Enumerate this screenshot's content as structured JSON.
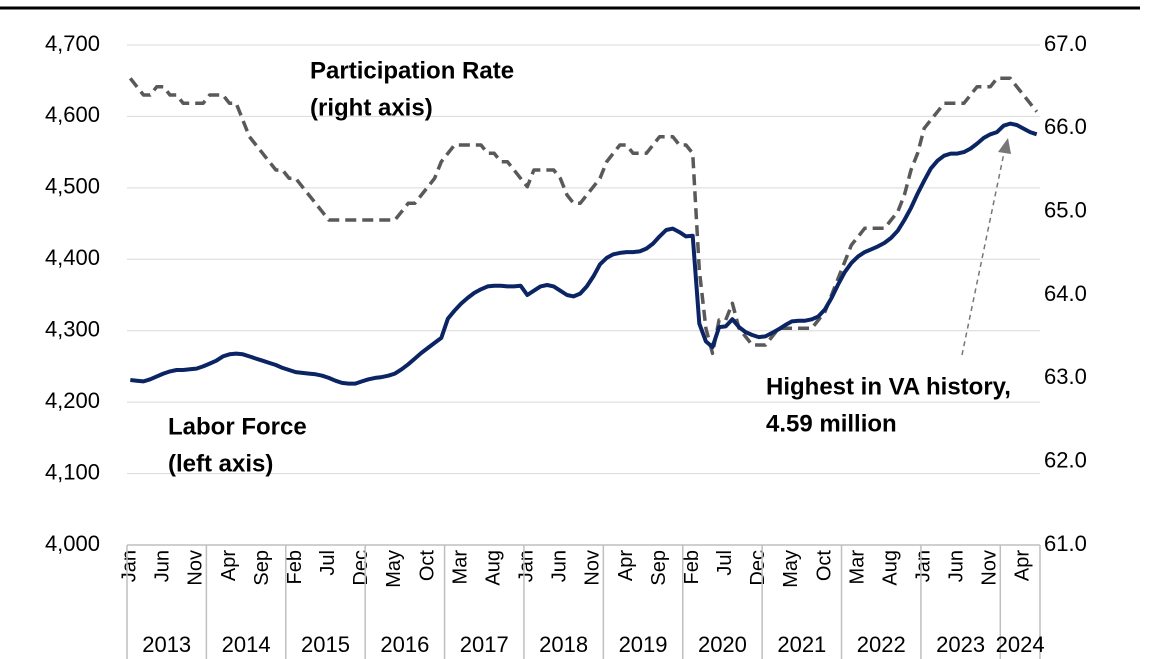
{
  "chart_data": {
    "type": "line",
    "categories": [
      "Jan",
      null,
      null,
      null,
      null,
      "Jun",
      null,
      null,
      null,
      null,
      "Nov",
      null,
      null,
      null,
      null,
      "Apr",
      null,
      null,
      null,
      null,
      "Sep",
      null,
      null,
      null,
      null,
      "Feb",
      null,
      null,
      null,
      null,
      "Jul",
      null,
      null,
      null,
      null,
      "Dec",
      null,
      null,
      null,
      null,
      "May",
      null,
      null,
      null,
      null,
      "Oct",
      null,
      null,
      null,
      null,
      "Mar",
      null,
      null,
      null,
      null,
      "Aug",
      null,
      null,
      null,
      null,
      "Jan",
      null,
      null,
      null,
      null,
      "Jun",
      null,
      null,
      null,
      null,
      "Nov",
      null,
      null,
      null,
      null,
      "Apr",
      null,
      null,
      null,
      null,
      "Sep",
      null,
      null,
      null,
      null,
      "Feb",
      null,
      null,
      null,
      null,
      "Jul",
      null,
      null,
      null,
      null,
      "Dec",
      null,
      null,
      null,
      null,
      "May",
      null,
      null,
      null,
      null,
      "Oct",
      null,
      null,
      null,
      null,
      "Mar",
      null,
      null,
      null,
      null,
      "Aug",
      null,
      null,
      null,
      null,
      "Jan",
      null,
      null,
      null,
      null,
      "Jun",
      null,
      null,
      null,
      null,
      "Nov",
      null,
      null,
      null,
      null,
      "Apr",
      null,
      null
    ],
    "years": [
      {
        "label": "2013",
        "months": 12
      },
      {
        "label": "2014",
        "months": 12
      },
      {
        "label": "2015",
        "months": 12
      },
      {
        "label": "2016",
        "months": 12
      },
      {
        "label": "2017",
        "months": 12
      },
      {
        "label": "2018",
        "months": 12
      },
      {
        "label": "2019",
        "months": 12
      },
      {
        "label": "2020",
        "months": 12
      },
      {
        "label": "2021",
        "months": 12
      },
      {
        "label": "2022",
        "months": 12
      },
      {
        "label": "2023",
        "months": 12
      },
      {
        "label": "2024",
        "months": 6
      }
    ],
    "series": [
      {
        "name": "Labor Force",
        "axis_label": "(left axis)",
        "color": "#0b2463",
        "dashed": false,
        "values": [
          4231,
          4230,
          4229,
          4232,
          4236,
          4240,
          4243,
          4245,
          4245,
          4246,
          4247,
          4250,
          4254,
          4258,
          4264,
          4267,
          4268,
          4267,
          4264,
          4261,
          4258,
          4255,
          4252,
          4248,
          4245,
          4242,
          4241,
          4240,
          4239,
          4237,
          4234,
          4230,
          4227,
          4226,
          4226,
          4229,
          4232,
          4234,
          4235,
          4237,
          4240,
          4246,
          4253,
          4261,
          4269,
          4276,
          4283,
          4290,
          4317,
          4328,
          4338,
          4346,
          4353,
          4358,
          4362,
          4363,
          4363,
          4362,
          4362,
          4363,
          4350,
          4356,
          4362,
          4364,
          4362,
          4356,
          4350,
          4348,
          4352,
          4362,
          4376,
          4393,
          4402,
          4407,
          4409,
          4410,
          4410,
          4411,
          4415,
          4422,
          4432,
          4441,
          4443,
          4438,
          4432,
          4433,
          4310,
          4285,
          4277,
          4305,
          4306,
          4316,
          4305,
          4298,
          4294,
          4291,
          4292,
          4297,
          4302,
          4308,
          4313,
          4314,
          4314,
          4316,
          4320,
          4330,
          4346,
          4365,
          4382,
          4395,
          4404,
          4410,
          4414,
          4418,
          4423,
          4430,
          4440,
          4455,
          4472,
          4492,
          4510,
          4527,
          4538,
          4545,
          4548,
          4548,
          4550,
          4555,
          4562,
          4570,
          4575,
          4578,
          4587,
          4590,
          4588,
          4583,
          4578,
          4575
        ]
      },
      {
        "name": "Participation Rate",
        "axis_label": "(right axis)",
        "color": "#595959",
        "dashed": true,
        "axis": "y2",
        "values": [
          66.6,
          66.5,
          66.4,
          66.4,
          66.5,
          66.5,
          66.4,
          66.4,
          66.3,
          66.3,
          66.3,
          66.3,
          66.4,
          66.4,
          66.4,
          66.3,
          66.3,
          66.1,
          65.9,
          65.8,
          65.7,
          65.6,
          65.5,
          65.5,
          65.4,
          65.4,
          65.3,
          65.2,
          65.1,
          65.0,
          64.9,
          64.9,
          64.9,
          64.9,
          64.9,
          64.9,
          64.9,
          64.9,
          64.9,
          64.9,
          64.9,
          65.0,
          65.1,
          65.1,
          65.2,
          65.3,
          65.4,
          65.6,
          65.7,
          65.8,
          65.8,
          65.8,
          65.8,
          65.8,
          65.7,
          65.7,
          65.6,
          65.6,
          65.5,
          65.4,
          65.3,
          65.5,
          65.5,
          65.5,
          65.5,
          65.4,
          65.2,
          65.1,
          65.1,
          65.2,
          65.3,
          65.4,
          65.6,
          65.7,
          65.8,
          65.8,
          65.7,
          65.7,
          65.7,
          65.8,
          65.9,
          65.9,
          65.9,
          65.8,
          65.8,
          65.7,
          64.3,
          63.6,
          63.3,
          63.7,
          63.7,
          63.9,
          63.6,
          63.5,
          63.4,
          63.4,
          63.4,
          63.5,
          63.6,
          63.6,
          63.6,
          63.6,
          63.6,
          63.6,
          63.7,
          63.8,
          64.0,
          64.2,
          64.4,
          64.6,
          64.7,
          64.8,
          64.8,
          64.8,
          64.8,
          64.9,
          65.0,
          65.2,
          65.5,
          65.7,
          66.0,
          66.1,
          66.2,
          66.3,
          66.3,
          66.3,
          66.3,
          66.4,
          66.5,
          66.5,
          66.5,
          66.6,
          66.6,
          66.6,
          66.5,
          66.4,
          66.3,
          66.2
        ]
      }
    ],
    "ylim": [
      4000,
      4700
    ],
    "yticks": [
      {
        "value": 4000,
        "label": "4,000"
      },
      {
        "value": 4100,
        "label": "4,100"
      },
      {
        "value": 4200,
        "label": "4,200"
      },
      {
        "value": 4300,
        "label": "4,300"
      },
      {
        "value": 4400,
        "label": "4,400"
      },
      {
        "value": 4500,
        "label": "4,500"
      },
      {
        "value": 4600,
        "label": "4,600"
      },
      {
        "value": 4700,
        "label": "4,700"
      }
    ],
    "y2lim": [
      61,
      67
    ],
    "y2ticks": [
      {
        "value": 61,
        "label": "61.0"
      },
      {
        "value": 62,
        "label": "62.0"
      },
      {
        "value": 63,
        "label": "63.0"
      },
      {
        "value": 64,
        "label": "64.0"
      },
      {
        "value": 65,
        "label": "65.0"
      },
      {
        "value": 66,
        "label": "66.0"
      },
      {
        "value": 67,
        "label": "67.0"
      }
    ],
    "grid": true,
    "annotations": [
      {
        "lines": [
          "Highest in VA history,",
          "4.59 million"
        ]
      }
    ]
  }
}
